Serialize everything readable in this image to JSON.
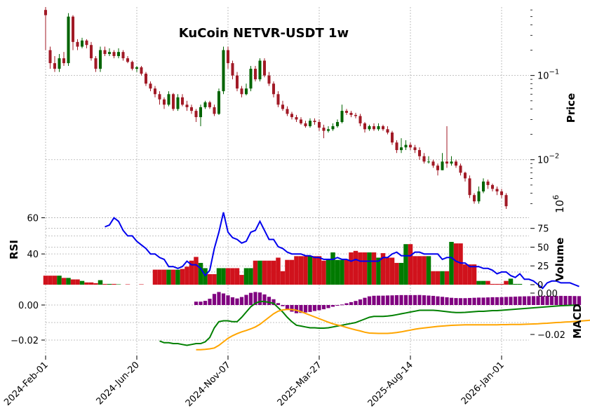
{
  "chart_data": {
    "type": "candlestick",
    "title": "KuCoin NETVR-USDT 1w",
    "panels": {
      "price": {
        "ylabel": "Price",
        "scale": "log",
        "ylim": [
          0.0026,
          0.65
        ],
        "major_ticks": [
          {
            "value": 0.1,
            "label": "10^-1"
          },
          {
            "value": 0.01,
            "label": "10^-2"
          }
        ]
      },
      "rsi": {
        "ylabel": "RSI",
        "ticks": [
          60,
          40
        ]
      },
      "volume": {
        "ylabel": "Volume",
        "multiplier_label": "10^6",
        "ticks": [
          0.0,
          25,
          50,
          75
        ]
      },
      "macd": {
        "ylabel": "MACD",
        "left_ticks": [
          "0.00",
          "-0.02"
        ],
        "right_ticks": [
          "0.00",
          "-0.02"
        ]
      }
    },
    "x_tick_labels": [
      "2024-Feb-01",
      "2024-Jun-20",
      "2024-Nov-07",
      "2025-Mar-27",
      "2025-Aug-14",
      "2026-Jan-01"
    ],
    "weeks": 107,
    "colors": {
      "up": "#006400",
      "down": "#a11a26",
      "volume_up": "#007a00",
      "volume_down": "#d0121c",
      "rsi": "#0000ee",
      "macd": "#008000",
      "signal": "#ffa500",
      "hist": "#800080"
    },
    "ohlc": [
      [
        0.6,
        0.52,
        0.65,
        0.2
      ],
      [
        0.2,
        0.14,
        0.22,
        0.12
      ],
      [
        0.14,
        0.12,
        0.17,
        0.11
      ],
      [
        0.12,
        0.16,
        0.18,
        0.11
      ],
      [
        0.16,
        0.14,
        0.19,
        0.13
      ],
      [
        0.14,
        0.5,
        0.55,
        0.13
      ],
      [
        0.5,
        0.25,
        0.52,
        0.2
      ],
      [
        0.25,
        0.22,
        0.27,
        0.2
      ],
      [
        0.22,
        0.26,
        0.28,
        0.21
      ],
      [
        0.26,
        0.23,
        0.27,
        0.21
      ],
      [
        0.23,
        0.16,
        0.25,
        0.15
      ],
      [
        0.16,
        0.12,
        0.17,
        0.11
      ],
      [
        0.12,
        0.2,
        0.22,
        0.11
      ],
      [
        0.2,
        0.18,
        0.22,
        0.17
      ],
      [
        0.18,
        0.19,
        0.21,
        0.17
      ],
      [
        0.19,
        0.17,
        0.2,
        0.16
      ],
      [
        0.17,
        0.19,
        0.21,
        0.16
      ],
      [
        0.19,
        0.16,
        0.2,
        0.15
      ],
      [
        0.16,
        0.145,
        0.17,
        0.14
      ],
      [
        0.145,
        0.12,
        0.15,
        0.115
      ],
      [
        0.12,
        0.125,
        0.13,
        0.11
      ],
      [
        0.125,
        0.105,
        0.13,
        0.1
      ],
      [
        0.105,
        0.08,
        0.11,
        0.075
      ],
      [
        0.08,
        0.07,
        0.085,
        0.065
      ],
      [
        0.07,
        0.06,
        0.075,
        0.055
      ],
      [
        0.06,
        0.052,
        0.065,
        0.045
      ],
      [
        0.052,
        0.045,
        0.055,
        0.04
      ],
      [
        0.045,
        0.06,
        0.065,
        0.043
      ],
      [
        0.06,
        0.04,
        0.062,
        0.038
      ],
      [
        0.04,
        0.055,
        0.06,
        0.038
      ],
      [
        0.055,
        0.045,
        0.06,
        0.043
      ],
      [
        0.045,
        0.042,
        0.05,
        0.038
      ],
      [
        0.042,
        0.038,
        0.045,
        0.035
      ],
      [
        0.038,
        0.032,
        0.04,
        0.028
      ],
      [
        0.032,
        0.042,
        0.045,
        0.025
      ],
      [
        0.042,
        0.048,
        0.05,
        0.04
      ],
      [
        0.048,
        0.042,
        0.05,
        0.04
      ],
      [
        0.042,
        0.035,
        0.045,
        0.033
      ],
      [
        0.035,
        0.065,
        0.07,
        0.034
      ],
      [
        0.065,
        0.2,
        0.22,
        0.06
      ],
      [
        0.2,
        0.14,
        0.22,
        0.12
      ],
      [
        0.14,
        0.1,
        0.15,
        0.09
      ],
      [
        0.1,
        0.07,
        0.11,
        0.065
      ],
      [
        0.07,
        0.06,
        0.075,
        0.055
      ],
      [
        0.06,
        0.07,
        0.08,
        0.058
      ],
      [
        0.07,
        0.12,
        0.13,
        0.065
      ],
      [
        0.12,
        0.09,
        0.13,
        0.085
      ],
      [
        0.09,
        0.15,
        0.16,
        0.085
      ],
      [
        0.15,
        0.1,
        0.16,
        0.095
      ],
      [
        0.1,
        0.08,
        0.11,
        0.075
      ],
      [
        0.08,
        0.06,
        0.085,
        0.055
      ],
      [
        0.06,
        0.045,
        0.065,
        0.042
      ],
      [
        0.045,
        0.04,
        0.05,
        0.038
      ],
      [
        0.04,
        0.035,
        0.043,
        0.033
      ],
      [
        0.035,
        0.032,
        0.037,
        0.03
      ],
      [
        0.032,
        0.03,
        0.034,
        0.028
      ],
      [
        0.03,
        0.027,
        0.032,
        0.026
      ],
      [
        0.027,
        0.025,
        0.029,
        0.024
      ],
      [
        0.025,
        0.029,
        0.031,
        0.024
      ],
      [
        0.029,
        0.028,
        0.031,
        0.026
      ],
      [
        0.028,
        0.024,
        0.03,
        0.022
      ],
      [
        0.024,
        0.022,
        0.026,
        0.018
      ],
      [
        0.022,
        0.023,
        0.025,
        0.021
      ],
      [
        0.023,
        0.025,
        0.027,
        0.022
      ],
      [
        0.025,
        0.028,
        0.03,
        0.024
      ],
      [
        0.028,
        0.038,
        0.045,
        0.027
      ],
      [
        0.038,
        0.036,
        0.04,
        0.034
      ],
      [
        0.036,
        0.034,
        0.038,
        0.032
      ],
      [
        0.034,
        0.033,
        0.036,
        0.031
      ],
      [
        0.033,
        0.027,
        0.035,
        0.025
      ],
      [
        0.027,
        0.023,
        0.028,
        0.021
      ],
      [
        0.023,
        0.025,
        0.026,
        0.022
      ],
      [
        0.025,
        0.023,
        0.027,
        0.022
      ],
      [
        0.023,
        0.025,
        0.027,
        0.022
      ],
      [
        0.025,
        0.023,
        0.026,
        0.022
      ],
      [
        0.023,
        0.021,
        0.025,
        0.02
      ],
      [
        0.021,
        0.016,
        0.022,
        0.015
      ],
      [
        0.016,
        0.013,
        0.017,
        0.012
      ],
      [
        0.013,
        0.014,
        0.018,
        0.012
      ],
      [
        0.014,
        0.015,
        0.017,
        0.013
      ],
      [
        0.015,
        0.014,
        0.016,
        0.013
      ],
      [
        0.014,
        0.013,
        0.015,
        0.012
      ],
      [
        0.013,
        0.011,
        0.014,
        0.01
      ],
      [
        0.011,
        0.0095,
        0.012,
        0.009
      ],
      [
        0.0095,
        0.0095,
        0.011,
        0.009
      ],
      [
        0.0095,
        0.0085,
        0.01,
        0.008
      ],
      [
        0.0085,
        0.0075,
        0.009,
        0.0065
      ],
      [
        0.0075,
        0.0095,
        0.012,
        0.0075
      ],
      [
        0.0095,
        0.009,
        0.025,
        0.008
      ],
      [
        0.009,
        0.0095,
        0.011,
        0.0085
      ],
      [
        0.0095,
        0.0085,
        0.01,
        0.008
      ],
      [
        0.0085,
        0.007,
        0.009,
        0.0065
      ],
      [
        0.007,
        0.006,
        0.0072,
        0.0055
      ],
      [
        0.006,
        0.0038,
        0.0065,
        0.0035
      ],
      [
        0.0038,
        0.0032,
        0.004,
        0.003
      ],
      [
        0.0032,
        0.0042,
        0.0048,
        0.003
      ],
      [
        0.0042,
        0.0055,
        0.006,
        0.004
      ],
      [
        0.0055,
        0.005,
        0.0058,
        0.0045
      ],
      [
        0.005,
        0.0045,
        0.0052,
        0.0042
      ],
      [
        0.0045,
        0.0042,
        0.0048,
        0.0038
      ],
      [
        0.0042,
        0.0038,
        0.0045,
        0.0035
      ],
      [
        0.0038,
        0.0028,
        0.004,
        0.0026
      ]
    ],
    "volume": [
      12,
      12,
      12,
      12,
      9,
      9,
      7,
      7,
      5,
      3,
      3,
      2,
      6,
      1,
      1,
      1,
      0.5,
      0,
      0.5,
      0,
      0,
      0.5,
      0,
      0,
      20,
      20,
      20,
      20,
      20,
      20,
      21,
      24,
      32,
      37,
      29,
      22,
      14,
      14,
      22,
      22,
      22,
      22,
      22,
      13,
      22,
      22,
      32,
      32,
      32,
      32,
      32,
      36,
      18,
      33,
      33,
      38,
      38,
      38,
      38,
      38,
      38,
      32,
      33,
      43,
      33,
      33,
      33,
      43,
      45,
      43,
      43,
      43,
      43,
      36,
      42,
      36,
      36,
      29,
      29,
      54,
      54,
      38,
      38,
      38,
      38,
      18,
      18,
      18,
      18,
      57,
      55,
      55,
      27,
      27,
      27,
      5,
      5,
      5,
      1,
      1,
      1,
      5,
      8,
      1,
      1,
      0,
      0
    ],
    "rsi": [
      55,
      56,
      60,
      58,
      53,
      50,
      50,
      47,
      45,
      43,
      40,
      40,
      38,
      37,
      33,
      33,
      32,
      33,
      36,
      34,
      34,
      32,
      28,
      31,
      43,
      52,
      63,
      52,
      49,
      48,
      46,
      47,
      52,
      53,
      58,
      53,
      48,
      48,
      44,
      43,
      41,
      40,
      40,
      40,
      39,
      39,
      38,
      38,
      37,
      37,
      37,
      38,
      37,
      37,
      36,
      37,
      36,
      36,
      36,
      36,
      36,
      38,
      38,
      40,
      41,
      39,
      39,
      39,
      41,
      41,
      40,
      40,
      40,
      40,
      37,
      38,
      38,
      36,
      35,
      35,
      33,
      33,
      33,
      32,
      32,
      31,
      29,
      30,
      30,
      28,
      27,
      29,
      26,
      26,
      25,
      23,
      21,
      24,
      25,
      25,
      24,
      24,
      24,
      23,
      22
    ],
    "macd": [
      -0.0205,
      -0.0215,
      -0.0215,
      -0.022,
      -0.022,
      -0.0225,
      -0.023,
      -0.0225,
      -0.022,
      -0.022,
      -0.021,
      -0.0185,
      -0.013,
      -0.0095,
      -0.009,
      -0.009,
      -0.0095,
      -0.0095,
      -0.007,
      -0.004,
      -0.001,
      0.001,
      0.002,
      0.002,
      0.0015,
      0.001,
      -0.0015,
      -0.004,
      -0.007,
      -0.0095,
      -0.0115,
      -0.012,
      -0.0125,
      -0.013,
      -0.013,
      -0.0132,
      -0.0132,
      -0.013,
      -0.0125,
      -0.012,
      -0.0115,
      -0.011,
      -0.0105,
      -0.01,
      -0.009,
      -0.008,
      -0.007,
      -0.0065,
      -0.0065,
      -0.0065,
      -0.0063,
      -0.006,
      -0.0055,
      -0.005,
      -0.0045,
      -0.004,
      -0.0035,
      -0.003,
      -0.003,
      -0.003,
      -0.003,
      -0.0032,
      -0.0035,
      -0.0038,
      -0.0041,
      -0.0043,
      -0.0043,
      -0.0042,
      -0.004,
      -0.0038,
      -0.0036,
      -0.0036,
      -0.0034,
      -0.0032,
      -0.0032,
      -0.003,
      -0.0028,
      -0.0026,
      -0.0024,
      -0.0022,
      -0.002,
      -0.0018,
      -0.0016,
      -0.0014,
      -0.0012,
      -0.001,
      -0.0008,
      -0.0006,
      -0.0004,
      -0.0003,
      -0.0002,
      -0.0001,
      0
    ],
    "signal": [
      -0.0255,
      -0.0255,
      -0.0253,
      -0.025,
      -0.0245,
      -0.023,
      -0.021,
      -0.019,
      -0.0175,
      -0.0163,
      -0.0153,
      -0.0145,
      -0.0136,
      -0.0125,
      -0.011,
      -0.009,
      -0.007,
      -0.005,
      -0.0035,
      -0.0028,
      -0.0025,
      -0.0026,
      -0.003,
      -0.0038,
      -0.0048,
      -0.0058,
      -0.0068,
      -0.0078,
      -0.0088,
      -0.0098,
      -0.0107,
      -0.0114,
      -0.012,
      -0.0128,
      -0.0135,
      -0.0142,
      -0.0148,
      -0.0155,
      -0.016,
      -0.0161,
      -0.0162,
      -0.0162,
      -0.0162,
      -0.016,
      -0.0157,
      -0.0153,
      -0.0148,
      -0.0143,
      -0.0138,
      -0.0134,
      -0.0131,
      -0.0128,
      -0.0125,
      -0.0122,
      -0.012,
      -0.0118,
      -0.0116,
      -0.0115,
      -0.0114,
      -0.0113,
      -0.0113,
      -0.0113,
      -0.0113,
      -0.0113,
      -0.0113,
      -0.0113,
      -0.0113,
      -0.0112,
      -0.0112,
      -0.0111,
      -0.0111,
      -0.0111,
      -0.011,
      -0.0109,
      -0.0108,
      -0.0107,
      -0.0105,
      -0.0104,
      -0.0102,
      -0.01,
      -0.0099,
      -0.0097,
      -0.0096,
      -0.0094,
      -0.0092,
      -0.009,
      -0.0088,
      -0.0086,
      -0.0084,
      -0.0082,
      -0.008,
      -0.0078,
      -0.0075
    ]
  }
}
